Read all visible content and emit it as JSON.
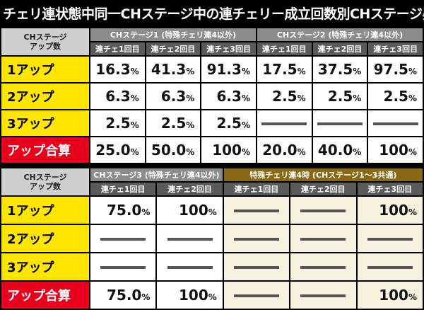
{
  "title": "チェリ連状態中同一CHステージ中の連チェリー成立回数別CHステージ昇格抽選",
  "corner_label_line1": "CHステージ",
  "corner_label_line2": "アップ数",
  "table1": {
    "groups": [
      {
        "label": "CHステージ1 (特殊チェリ連4以外)"
      },
      {
        "label": "CHステージ2 (特殊チェリ連4以外)"
      }
    ],
    "subheaders": [
      "連チェ1回目",
      "連チェ2回目",
      "連チェ3回目",
      "連チェ1回目",
      "連チェ2回目",
      "連チェ3回目"
    ],
    "rows": [
      {
        "label": "1アップ",
        "cells": [
          {
            "n": "16.3",
            "p": "%"
          },
          {
            "n": "41.3",
            "p": "%"
          },
          {
            "n": "91.3",
            "p": "%"
          },
          {
            "n": "17.5",
            "p": "%"
          },
          {
            "n": "37.5",
            "p": "%"
          },
          {
            "n": "97.5",
            "p": "%"
          }
        ]
      },
      {
        "label": "2アップ",
        "cells": [
          {
            "n": "6.3",
            "p": "%"
          },
          {
            "n": "6.3",
            "p": "%"
          },
          {
            "n": "6.3",
            "p": "%"
          },
          {
            "n": "2.5",
            "p": "%"
          },
          {
            "n": "2.5",
            "p": "%"
          },
          {
            "n": "2.5",
            "p": "%"
          }
        ]
      },
      {
        "label": "3アップ",
        "cells": [
          {
            "n": "2.5",
            "p": "%"
          },
          {
            "n": "2.5",
            "p": "%"
          },
          {
            "n": "2.5",
            "p": "%"
          },
          null,
          null,
          null
        ]
      },
      {
        "label": "アップ合算",
        "total": true,
        "cells": [
          {
            "n": "25.0",
            "p": "%"
          },
          {
            "n": "50.0",
            "p": "%"
          },
          {
            "n": "100",
            "p": "%"
          },
          {
            "n": "20.0",
            "p": "%"
          },
          {
            "n": "40.0",
            "p": "%"
          },
          {
            "n": "100",
            "p": "%"
          }
        ]
      }
    ]
  },
  "table2": {
    "groups": [
      {
        "label": "CHステージ3 (特殊チェリ連4以外)"
      },
      {
        "label": "特殊チェリ連4時 (CHステージ1〜3共通)"
      }
    ],
    "subheaders": [
      "連チェ1回目",
      "連チェ2回目",
      "連チェ1回目",
      "連チェ2回目",
      "連チェ3回目"
    ],
    "rows": [
      {
        "label": "1アップ",
        "cells": [
          {
            "n": "75.0",
            "p": "%"
          },
          {
            "n": "100",
            "p": "%"
          },
          null,
          null,
          {
            "n": "100",
            "p": "%"
          }
        ]
      },
      {
        "label": "2アップ",
        "cells": [
          null,
          null,
          null,
          null,
          null
        ]
      },
      {
        "label": "3アップ",
        "cells": [
          null,
          null,
          null,
          null,
          null
        ]
      },
      {
        "label": "アップ合算",
        "total": true,
        "cells": [
          {
            "n": "75.0",
            "p": "%"
          },
          {
            "n": "100",
            "p": "%"
          },
          null,
          null,
          {
            "n": "100",
            "p": "%"
          }
        ]
      }
    ]
  }
}
